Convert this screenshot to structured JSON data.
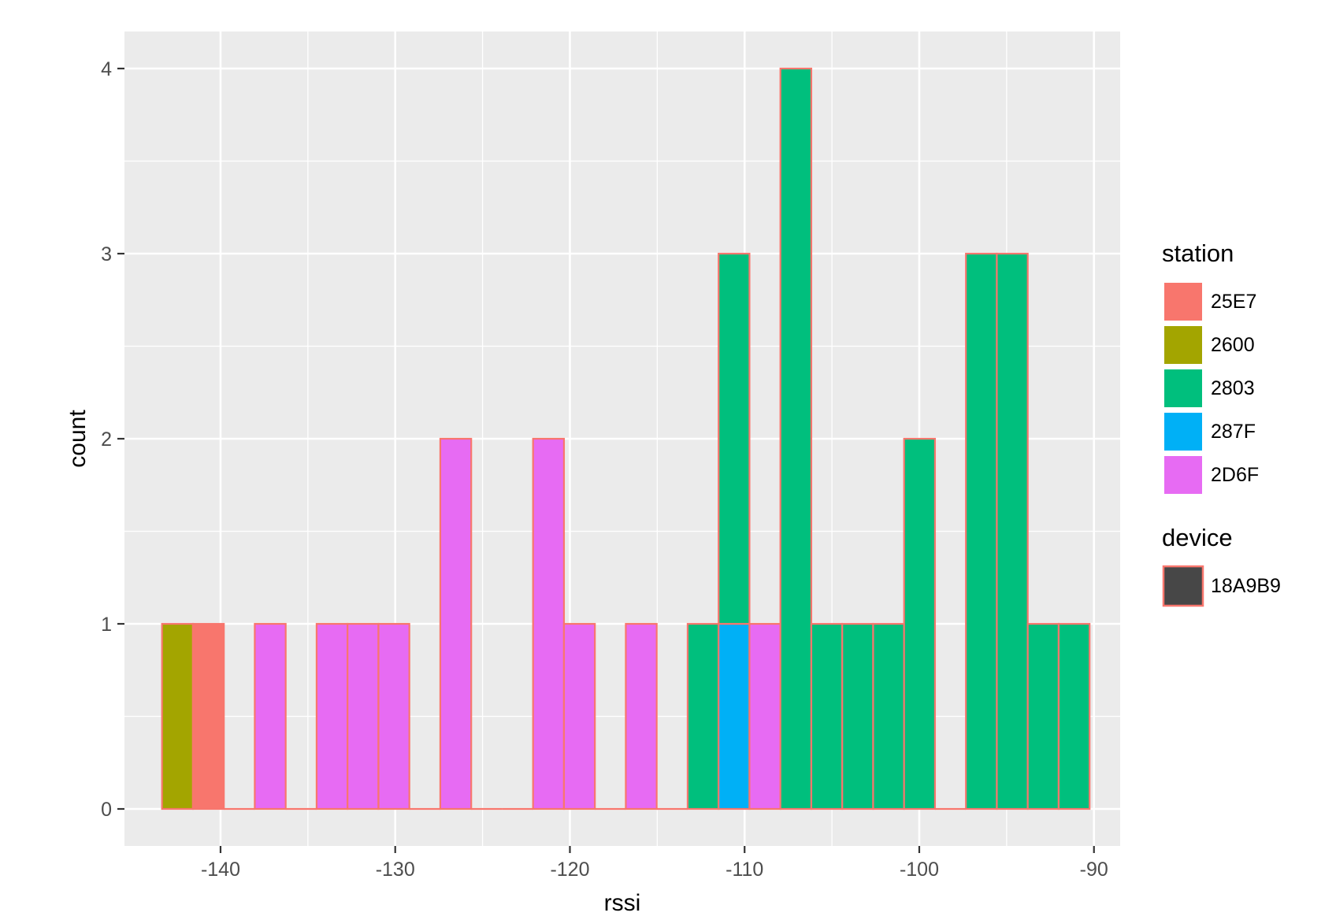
{
  "chart_data": {
    "type": "bar",
    "title": "",
    "xlabel": "rssi",
    "ylabel": "count",
    "xlim": [
      -145.5,
      -88.5
    ],
    "ylim": [
      -0.2,
      4.2
    ],
    "x_ticks": [
      -140,
      -130,
      -120,
      -110,
      -100,
      -90
    ],
    "x_tick_labels": [
      "-140",
      "-130",
      "-120",
      "-110",
      "-100",
      "-90"
    ],
    "y_ticks": [
      0,
      1,
      2,
      3,
      4
    ],
    "y_tick_labels": [
      "0",
      "1",
      "2",
      "3",
      "4"
    ],
    "grid": true,
    "legend_position": "right",
    "bin_edges": [
      -143.35,
      -141.58,
      -139.81,
      -138.04,
      -136.27,
      -134.5,
      -132.73,
      -130.96,
      -129.19,
      -127.42,
      -125.65,
      -123.88,
      -122.11,
      -120.34,
      -118.57,
      -116.8,
      -115.03,
      -113.26,
      -111.49,
      -109.72,
      -107.95,
      -106.18,
      -104.41,
      -102.64,
      -100.87,
      -99.1,
      -97.33,
      -95.56,
      -93.79,
      -92.02,
      -90.25
    ],
    "series": [
      {
        "name": "25E7",
        "color": "#F8766D",
        "values": [
          0,
          1,
          0,
          0,
          0,
          0,
          0,
          0,
          0,
          0,
          0,
          0,
          0,
          0,
          0,
          0,
          0,
          0,
          0,
          0,
          0,
          0,
          0,
          0,
          0,
          0,
          0,
          0,
          0,
          0
        ]
      },
      {
        "name": "2600",
        "color": "#A3A500",
        "values": [
          1,
          0,
          0,
          0,
          0,
          0,
          0,
          0,
          0,
          0,
          0,
          0,
          0,
          0,
          0,
          0,
          0,
          0,
          0,
          0,
          0,
          0,
          0,
          0,
          0,
          0,
          0,
          0,
          0,
          0
        ]
      },
      {
        "name": "2803",
        "color": "#00BF7D",
        "values": [
          0,
          0,
          0,
          0,
          0,
          0,
          0,
          0,
          0,
          0,
          0,
          0,
          0,
          0,
          0,
          0,
          0,
          1,
          2,
          0,
          4,
          1,
          1,
          1,
          2,
          0,
          3,
          3,
          1,
          1
        ]
      },
      {
        "name": "287F",
        "color": "#00B0F6",
        "values": [
          0,
          0,
          0,
          0,
          0,
          0,
          0,
          0,
          0,
          0,
          0,
          0,
          0,
          0,
          0,
          0,
          0,
          0,
          1,
          0,
          0,
          0,
          0,
          0,
          0,
          0,
          0,
          0,
          0,
          0
        ]
      },
      {
        "name": "2D6F",
        "color": "#E76BF3",
        "values": [
          0,
          0,
          0,
          1,
          0,
          1,
          1,
          1,
          0,
          2,
          0,
          0,
          2,
          1,
          0,
          1,
          0,
          0,
          0,
          1,
          0,
          0,
          0,
          0,
          0,
          0,
          0,
          0,
          0,
          0
        ]
      }
    ],
    "legends": [
      {
        "title": "station",
        "entries": [
          {
            "label": "25E7",
            "color": "#F8766D"
          },
          {
            "label": "2600",
            "color": "#A3A500"
          },
          {
            "label": "2803",
            "color": "#00BF7D"
          },
          {
            "label": "287F",
            "color": "#00B0F6"
          },
          {
            "label": "2D6F",
            "color": "#E76BF3"
          }
        ]
      },
      {
        "title": "device",
        "entries": [
          {
            "label": "18A9B9",
            "color": "#474747",
            "outline": "#F8766D"
          }
        ]
      }
    ],
    "outline_color": "#F8766D",
    "panel_background": "#EBEBEB",
    "grid_color": "#FFFFFF"
  }
}
